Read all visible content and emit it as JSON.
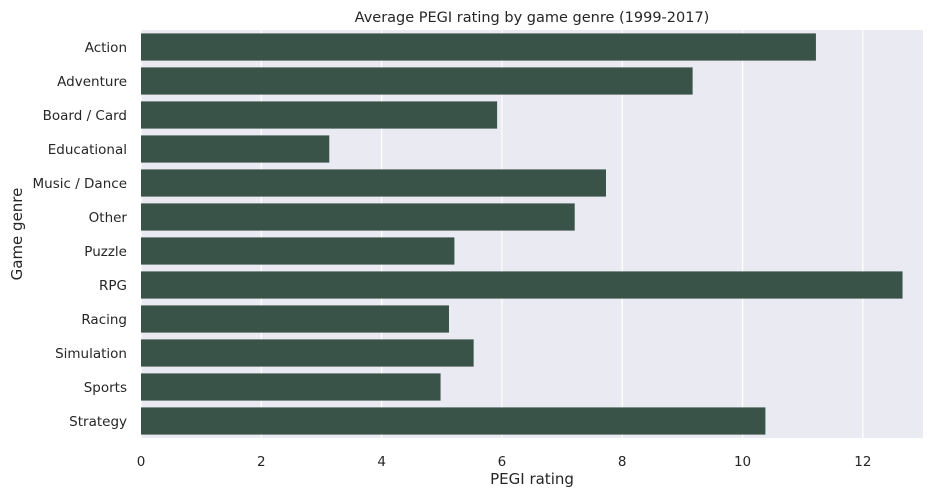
{
  "chart_data": {
    "type": "bar",
    "orientation": "horizontal",
    "title": "Average PEGI rating by game genre (1999-2017)",
    "xlabel": "PEGI rating",
    "ylabel": "Game genre",
    "categories": [
      "Action",
      "Adventure",
      "Board / Card",
      "Educational",
      "Music / Dance",
      "Other",
      "Puzzle",
      "RPG",
      "Racing",
      "Simulation",
      "Sports",
      "Strategy"
    ],
    "values": [
      11.22,
      9.17,
      5.92,
      3.13,
      7.73,
      7.21,
      5.21,
      12.66,
      5.12,
      5.53,
      4.98,
      10.38
    ],
    "xticks": [
      0,
      2,
      4,
      6,
      8,
      10,
      12
    ],
    "xlim": [
      0,
      13.0
    ],
    "grid": true,
    "colors": {
      "bar": "#3a5349",
      "plot_background": "#eaeaf2",
      "grid": "#ffffff"
    }
  }
}
